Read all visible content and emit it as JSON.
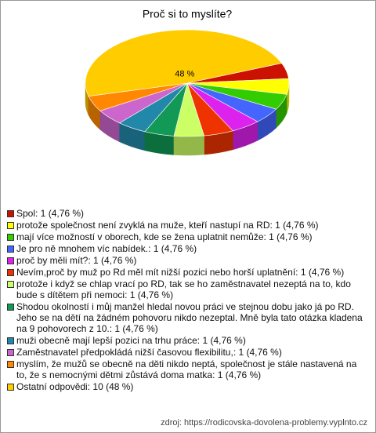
{
  "chart_data": {
    "type": "pie",
    "title": "Proč si to myslíte?",
    "categories": [
      "Spol: 1 (4,76 %)",
      "protože společnost není zvyklá na muže, kteří nastupí na RD: 1 (4,76 %)",
      "mají více možností v oborech, kde se žena uplatnit nemůže: 1 (4,76 %)",
      "Je pro ně mnohem víc nabídek.: 1 (4,76 %)",
      "proč by měli mít?: 1 (4,76 %)",
      "Nevím,proč by muž po Rd měl mít nižší pozici nebo horší uplatnění: 1 (4,76 %)",
      "protože i když se chlap vrací po RD, tak se ho zaměstnavatel nezeptá na to, kdo bude s dítětem při nemoci: 1 (4,76 %)",
      "Shodou okolností i můj manžel hledal novou práci ve stejnou dobu jako já po RD. Jeho se na dětí na žádném pohovoru nikdo nezeptal. Mně byla tato otázka kladena na 9 pohovorech z 10.: 1 (4,76 %)",
      "muži obecně mají lepší pozici na trhu práce: 1 (4,76 %)",
      "Zaměstnavatel předpokládá nižší časovou flexibilitu,: 1 (4,76 %)",
      "myslím, že mužů se obecně na děti nikdo neptá, společnost je stále nastavená na to, že s nemocnými dětmi zůstává doma matka: 1 (4,76 %)",
      "Ostatní odpovědi: 10 (48 %)"
    ],
    "values": [
      4.76,
      4.76,
      4.76,
      4.76,
      4.76,
      4.76,
      4.76,
      4.76,
      4.76,
      4.76,
      4.76,
      48
    ],
    "value_labels": [
      null,
      null,
      null,
      null,
      null,
      null,
      null,
      null,
      null,
      null,
      null,
      "48 %"
    ],
    "colors": [
      "#cc1100",
      "#ffff00",
      "#33cc00",
      "#4466ff",
      "#dd22ee",
      "#ee3300",
      "#ccff66",
      "#119955",
      "#2288aa",
      "#cc66cc",
      "#ff8800",
      "#ffcc00"
    ],
    "source": "zdroj: https://rodicovska-dovolena-problemy.vyplnto.cz"
  }
}
